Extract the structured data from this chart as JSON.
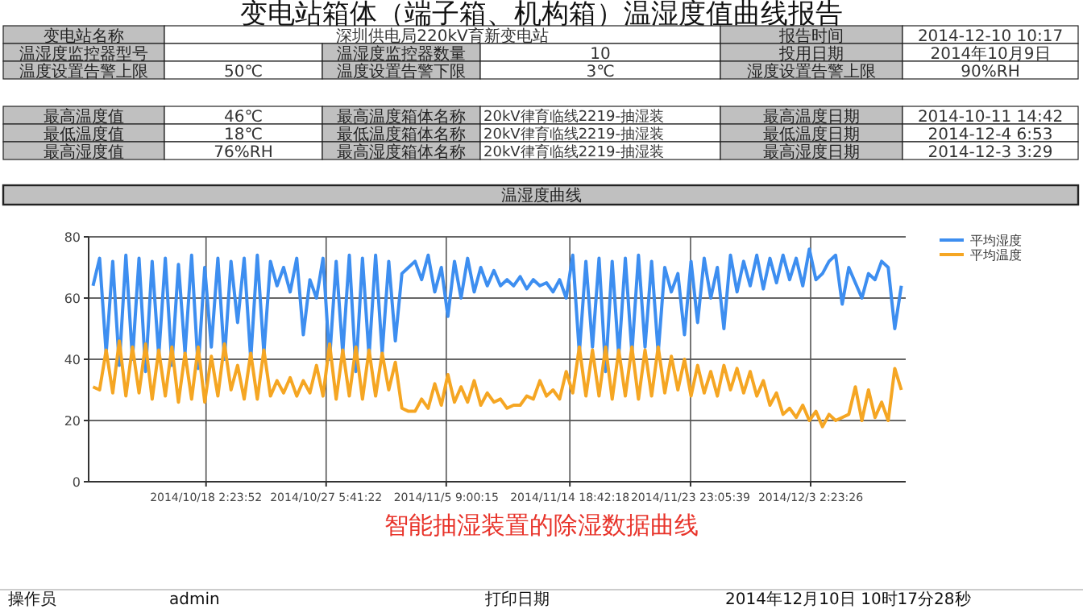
{
  "chart_data": {
    "type": "line",
    "title": "变电站箱体（端子箱、机构箱）温湿度值曲线报告",
    "subtitle": "温湿度曲线",
    "annotations": [
      "变电站名称",
      "深圳供电局220kV育新变电站",
      "报告时间",
      "2014-12-10 10:17",
      "温湿度监控器型号",
      "温湿度监控器数量",
      "10",
      "投用日期",
      "2014年10月9日",
      "温度设置告警上限",
      "50℃",
      "温度设置告警下限",
      "3℃",
      "湿度设置告警上限",
      "90%RH",
      "最高温度值",
      "46℃",
      "最高温度箱体名称",
      "20kV律育临线2219-抽湿装",
      "最高温度日期",
      "2014-10-11 14:42",
      "最低温度值",
      "18℃",
      "最低温度箱体名称",
      "20kV律育临线2219-抽湿装",
      "最低温度日期",
      "2014-12-4 6:53",
      "最高湿度值",
      "76%RH",
      "最高湿度箱体名称",
      "20kV律育临线2219-抽湿装",
      "最高湿度日期",
      "2014-12-3 3:29",
      "智能抽湿装置的除湿数据曲线",
      "操作员",
      "admin",
      "打印日期",
      "2014年12月10日 10时17分28秒"
    ],
    "x": [
      "2014-10-09T12:00",
      "2014-10-10T00:00",
      "2014-10-10T12:00",
      "2014-10-11T00:00",
      "2014-10-11T12:00",
      "2014-10-12T00:00",
      "2014-10-12T12:00",
      "2014-10-13T00:00",
      "2014-10-13T12:00",
      "2014-10-14T00:00",
      "2014-10-14T12:00",
      "2014-10-15T00:00",
      "2014-10-15T12:00",
      "2014-10-16T00:00",
      "2014-10-16T12:00",
      "2014-10-17T00:00",
      "2014-10-17T12:00",
      "2014-10-18T00:00",
      "2014-10-18T12:00",
      "2014-10-19T00:00",
      "2014-10-19T12:00",
      "2014-10-20T00:00",
      "2014-10-20T12:00",
      "2014-10-21T00:00",
      "2014-10-21T12:00",
      "2014-10-22T00:00",
      "2014-10-22T12:00",
      "2014-10-23T00:00",
      "2014-10-23T12:00",
      "2014-10-24T00:00",
      "2014-10-24T12:00",
      "2014-10-25T00:00",
      "2014-10-25T12:00",
      "2014-10-26T00:00",
      "2014-10-26T12:00",
      "2014-10-27T00:00",
      "2014-10-27T12:00",
      "2014-10-28T00:00",
      "2014-10-28T12:00",
      "2014-10-29T00:00",
      "2014-10-29T12:00",
      "2014-10-30T00:00",
      "2014-10-30T12:00",
      "2014-10-31T00:00",
      "2014-10-31T12:00",
      "2014-11-01T00:00",
      "2014-11-01T12:00",
      "2014-11-02T00:00",
      "2014-11-02T12:00",
      "2014-11-03T00:00",
      "2014-11-03T12:00",
      "2014-11-04T00:00",
      "2014-11-04T12:00",
      "2014-11-05T00:00",
      "2014-11-05T12:00",
      "2014-11-06T00:00",
      "2014-11-06T12:00",
      "2014-11-07T00:00",
      "2014-11-07T12:00",
      "2014-11-08T00:00",
      "2014-11-08T12:00",
      "2014-11-09T00:00",
      "2014-11-09T12:00",
      "2014-11-10T00:00",
      "2014-11-10T12:00",
      "2014-11-11T00:00",
      "2014-11-11T12:00",
      "2014-11-12T00:00",
      "2014-11-12T12:00",
      "2014-11-13T00:00",
      "2014-11-13T12:00",
      "2014-11-14T00:00",
      "2014-11-14T12:00",
      "2014-11-15T00:00",
      "2014-11-15T12:00",
      "2014-11-16T00:00",
      "2014-11-16T12:00",
      "2014-11-17T00:00",
      "2014-11-17T12:00",
      "2014-11-18T00:00",
      "2014-11-18T12:00",
      "2014-11-19T00:00",
      "2014-11-19T12:00",
      "2014-11-20T00:00",
      "2014-11-20T12:00",
      "2014-11-21T00:00",
      "2014-11-21T12:00",
      "2014-11-22T00:00",
      "2014-11-22T12:00",
      "2014-11-23T00:00",
      "2014-11-23T12:00",
      "2014-11-24T00:00",
      "2014-11-24T12:00",
      "2014-11-25T00:00",
      "2014-11-25T12:00",
      "2014-11-26T00:00",
      "2014-11-26T12:00",
      "2014-11-27T00:00",
      "2014-11-27T12:00",
      "2014-11-28T00:00",
      "2014-11-28T12:00",
      "2014-11-29T00:00",
      "2014-11-29T12:00",
      "2014-11-30T00:00",
      "2014-11-30T12:00",
      "2014-12-01T00:00",
      "2014-12-01T12:00",
      "2014-12-02T00:00",
      "2014-12-02T12:00",
      "2014-12-03T00:00",
      "2014-12-03T12:00",
      "2014-12-04T00:00",
      "2014-12-04T12:00",
      "2014-12-05T00:00",
      "2014-12-05T12:00",
      "2014-12-06T00:00",
      "2014-12-06T12:00",
      "2014-12-07T00:00",
      "2014-12-07T12:00",
      "2014-12-08T00:00",
      "2014-12-08T12:00",
      "2014-12-09T00:00",
      "2014-12-09T12:00",
      "2014-12-10T00:00"
    ],
    "series": [
      {
        "name": "平均湿度",
        "color": "#3d8ef0",
        "values": [
          64,
          73,
          42,
          72,
          38,
          74,
          40,
          73,
          36,
          72,
          41,
          73,
          38,
          71,
          42,
          74,
          37,
          70,
          44,
          73,
          40,
          72,
          52,
          73,
          40,
          74,
          42,
          72,
          64,
          70,
          62,
          73,
          48,
          66,
          60,
          73,
          40,
          72,
          42,
          74,
          36,
          73,
          41,
          74,
          42,
          72,
          46,
          68,
          70,
          72,
          66,
          74,
          62,
          70,
          54,
          72,
          60,
          73,
          62,
          70,
          64,
          69,
          64,
          66,
          64,
          67,
          63,
          66,
          64,
          65,
          62,
          66,
          60,
          74,
          42,
          72,
          44,
          73,
          36,
          72,
          41,
          73,
          42,
          74,
          44,
          72,
          42,
          70,
          62,
          68,
          48,
          72,
          52,
          73,
          60,
          70,
          50,
          74,
          62,
          72,
          64,
          74,
          63,
          73,
          65,
          74,
          66,
          73,
          64,
          76,
          66,
          68,
          72,
          74,
          58,
          70,
          65,
          60,
          68,
          66,
          72,
          70,
          50,
          64
        ]
      },
      {
        "name": "平均温度",
        "color": "#f5a623",
        "values": [
          31,
          30,
          43,
          29,
          46,
          28,
          44,
          29,
          45,
          27,
          43,
          28,
          44,
          26,
          42,
          27,
          44,
          26,
          41,
          28,
          45,
          30,
          38,
          27,
          42,
          27,
          43,
          28,
          33,
          29,
          34,
          28,
          33,
          29,
          38,
          28,
          45,
          27,
          43,
          28,
          44,
          27,
          43,
          28,
          42,
          30,
          39,
          24,
          23,
          23,
          27,
          24,
          32,
          25,
          35,
          26,
          31,
          26,
          33,
          25,
          29,
          26,
          27,
          24,
          25,
          25,
          28,
          27,
          33,
          28,
          30,
          27,
          36,
          29,
          44,
          28,
          43,
          28,
          44,
          27,
          43,
          28,
          44,
          27,
          43,
          28,
          44,
          29,
          41,
          30,
          40,
          28,
          38,
          29,
          36,
          28,
          38,
          30,
          37,
          29,
          36,
          28,
          33,
          25,
          29,
          22,
          24,
          21,
          25,
          20,
          23,
          18,
          22,
          20,
          21,
          22,
          31,
          20,
          30,
          21,
          26,
          20,
          37,
          30
        ]
      }
    ],
    "xlim": [
      "2014-10-09T04:00",
      "2014-12-10T08:00"
    ],
    "xticks": [
      {
        "value": "2014-10-18T02:23",
        "label": "2014/10/18 2:23:52"
      },
      {
        "value": "2014-10-27T05:41",
        "label": "2014/10/27 5:41:22"
      },
      {
        "value": "2014-11-05T09:00",
        "label": "2014/11/5 9:00:15"
      },
      {
        "value": "2014-11-14T18:42",
        "label": "2014/11/14 18:42:18"
      },
      {
        "value": "2014-11-23T23:05",
        "label": "2014/11/23 23:05:39"
      },
      {
        "value": "2014-12-03T02:23",
        "label": "2014/12/3 2:23:26"
      }
    ],
    "ylim": [
      0,
      80
    ],
    "yticks": [
      0,
      20,
      40,
      60,
      80
    ],
    "grid": true,
    "legend": "top right"
  }
}
